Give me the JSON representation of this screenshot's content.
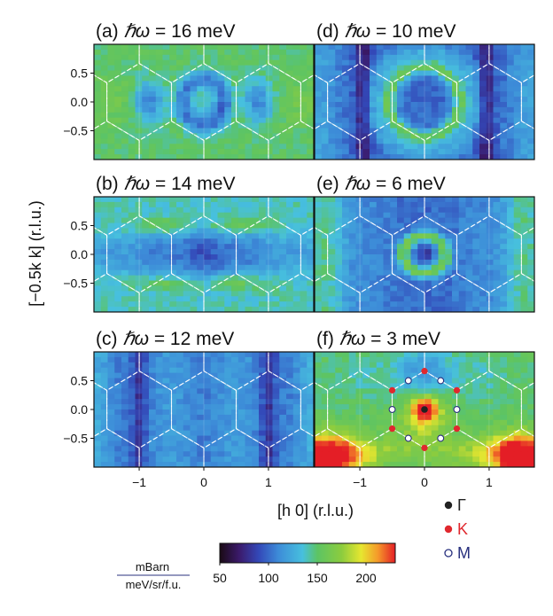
{
  "chart_data": {
    "type": "heatmap",
    "xlabel": "[h 0] (r.l.u.)",
    "ylabel": "[−0.5k k] (r.l.u.)",
    "x_ticks": [
      "−1",
      "0",
      "1"
    ],
    "x_tick_values": [
      -1,
      0,
      1
    ],
    "y_ticks": [
      "0.5",
      "0.0",
      "−0.5"
    ],
    "y_tick_values": [
      0.5,
      0.0,
      -0.5
    ],
    "xlim": [
      -1.7,
      1.7
    ],
    "ylim": [
      -1.0,
      1.0
    ],
    "colorbar": {
      "min": 50,
      "max": 230,
      "ticks": [
        "50",
        "100",
        "150",
        "200"
      ],
      "tick_values": [
        50,
        100,
        150,
        200
      ],
      "unit_numerator": "mBarn",
      "unit_denominator": "meV/sr/f.u.",
      "stops": [
        {
          "v": 50,
          "color": "#1a0a14"
        },
        {
          "v": 70,
          "color": "#3b1a6b"
        },
        {
          "v": 90,
          "color": "#3348b8"
        },
        {
          "v": 110,
          "color": "#3d8bd8"
        },
        {
          "v": 135,
          "color": "#47c0de"
        },
        {
          "v": 150,
          "color": "#5cc464"
        },
        {
          "v": 175,
          "color": "#8ccc3e"
        },
        {
          "v": 195,
          "color": "#e6e630"
        },
        {
          "v": 212,
          "color": "#f59a2a"
        },
        {
          "v": 230,
          "color": "#e41e26"
        }
      ]
    },
    "panels": [
      {
        "id": "a",
        "label": "(a)",
        "energy_text": "= 16 meV",
        "energy_meV": 16,
        "pattern": "p16"
      },
      {
        "id": "b",
        "label": "(b)",
        "energy_text": "= 14 meV",
        "energy_meV": 14,
        "pattern": "p14"
      },
      {
        "id": "c",
        "label": "(c)",
        "energy_text": "= 12 meV",
        "energy_meV": 12,
        "pattern": "p12"
      },
      {
        "id": "d",
        "label": "(d)",
        "energy_text": "= 10 meV",
        "energy_meV": 10,
        "pattern": "p10"
      },
      {
        "id": "e",
        "label": "(e)",
        "energy_text": "= 6 meV",
        "energy_meV": 6,
        "pattern": "p6"
      },
      {
        "id": "f",
        "label": "(f)",
        "energy_text": "= 3 meV",
        "energy_meV": 3,
        "pattern": "p3"
      }
    ],
    "omega_symbol": "ℏω",
    "points": {
      "gamma": [
        [
          0,
          0
        ]
      ],
      "K": [
        [
          0,
          0.667
        ],
        [
          0,
          -0.667
        ],
        [
          -0.5,
          0.333
        ],
        [
          0.5,
          0.333
        ],
        [
          -0.5,
          -0.333
        ],
        [
          0.5,
          -0.333
        ]
      ],
      "M": [
        [
          -0.25,
          0.5
        ],
        [
          0.25,
          0.5
        ],
        [
          -0.25,
          -0.5
        ],
        [
          0.25,
          -0.5
        ],
        [
          -0.5,
          0
        ],
        [
          0.5,
          0
        ]
      ]
    },
    "legend": [
      {
        "symbol": "gamma",
        "label": "Γ",
        "color": "#222222"
      },
      {
        "symbol": "K",
        "label": "K",
        "color": "#e0282e"
      },
      {
        "symbol": "M",
        "label": "M",
        "color": "#28307e"
      }
    ]
  }
}
